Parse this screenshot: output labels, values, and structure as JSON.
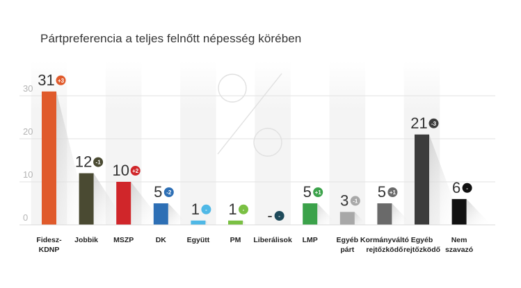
{
  "chart_data": {
    "type": "bar",
    "title": "Pártpreferencia a teljes felnőtt népesség körében",
    "ylim": [
      0,
      32
    ],
    "yticks": [
      0,
      10,
      20,
      30
    ],
    "grid": true,
    "categories": [
      [
        "Fidesz-",
        "KDNP"
      ],
      [
        "Jobbik"
      ],
      [
        "MSZP"
      ],
      [
        "DK"
      ],
      [
        "Együtt"
      ],
      [
        "PM"
      ],
      [
        "Liberálisok"
      ],
      [
        "LMP"
      ],
      [
        "Egyéb",
        "párt"
      ],
      [
        "Kormányváltó",
        "rejtőzködő"
      ],
      [
        "Egyéb",
        "rejtőzködő"
      ],
      [
        "Nem",
        "szavazó"
      ]
    ],
    "values": [
      31,
      12,
      10,
      5,
      1,
      1,
      null,
      5,
      3,
      5,
      21,
      6
    ],
    "value_labels": [
      "31",
      "12",
      "10",
      "5",
      "1",
      "1",
      "-",
      "5",
      "3",
      "5",
      "21",
      "6"
    ],
    "changes": [
      "+3",
      "-1",
      "+2",
      "-2",
      "-",
      "-",
      "-",
      "+1",
      "-1",
      "+1",
      "-3",
      "-"
    ],
    "colors": [
      "#e05a2b",
      "#4a4a32",
      "#d0262a",
      "#2d6fb5",
      "#4fb8e6",
      "#7ac043",
      "#1e4a5a",
      "#3ba24a",
      "#a8a8a8",
      "#6a6a6a",
      "#3c3c3c",
      "#111111"
    ]
  }
}
